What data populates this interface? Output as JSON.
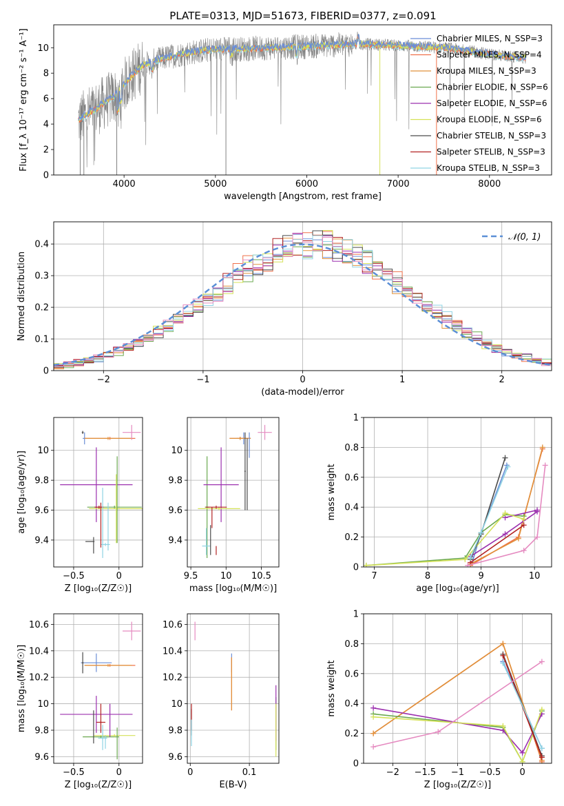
{
  "title": "PLATE=0313, MJD=51673, FIBERID=0377, z=0.091",
  "colors": {
    "Chabrier MILES": "#6b8ed6",
    "Salpeter MILES": "#f0704a",
    "Kroupa MILES": "#e0913a",
    "Chabrier ELODIE": "#6aa84f",
    "Salpeter ELODIE": "#9b2fae",
    "Kroupa ELODIE": "#d4e157",
    "Chabrier STELIB": "#4a4a4a",
    "Salpeter STELIB": "#b22222",
    "Kroupa STELIB": "#8fd3e3",
    "extra": "#e58ac0",
    "grey_spectrum": "#808080"
  },
  "chart_data": [
    {
      "id": "spectrum",
      "type": "line",
      "xlabel": "wavelength [Angstrom, rest frame]",
      "ylabel": "Flux [f_λ 10⁻¹⁷ erg cm⁻² s⁻¹ A⁻¹]",
      "xlim": [
        3230,
        8680
      ],
      "ylim": [
        0,
        11.8
      ],
      "xticks": [
        4000,
        5000,
        6000,
        7000,
        8000
      ],
      "yticks": [
        0,
        2,
        4,
        6,
        8,
        10
      ],
      "legend_position": "right",
      "legend": [
        {
          "label": "Chabrier MILES, N_SSP=3",
          "color": "#6b8ed6"
        },
        {
          "label": "Salpeter MILES, N_SSP=4",
          "color": "#f0704a"
        },
        {
          "label": "Kroupa MILES, N_SSP=3",
          "color": "#e0913a"
        },
        {
          "label": "Chabrier ELODIE, N_SSP=6",
          "color": "#6aa84f"
        },
        {
          "label": "Salpeter ELODIE, N_SSP=6",
          "color": "#9b2fae"
        },
        {
          "label": "Kroupa ELODIE, N_SSP=6",
          "color": "#d4e157"
        },
        {
          "label": "Chabrier STELIB, N_SSP=3",
          "color": "#4a4a4a"
        },
        {
          "label": "Salpeter STELIB, N_SSP=3",
          "color": "#b22222"
        },
        {
          "label": "Kroupa STELIB, N_SSP=3",
          "color": "#8fd3e3"
        }
      ],
      "continuum": {
        "x": [
          3500,
          3600,
          3700,
          3800,
          3900,
          4000,
          4100,
          4200,
          4300,
          4500,
          4700,
          5000,
          5300,
          5600,
          6000,
          6300,
          6600,
          6900,
          7200,
          7500,
          7800,
          8100,
          8400
        ],
        "y": [
          4.3,
          4.8,
          5.2,
          5.8,
          6.2,
          7.1,
          7.9,
          8.6,
          8.9,
          9.3,
          9.6,
          9.9,
          9.9,
          10.0,
          10.1,
          10.2,
          10.3,
          10.2,
          10.1,
          10.0,
          9.7,
          9.4,
          9.2
        ]
      }
    },
    {
      "id": "residuals",
      "type": "histogram",
      "xlabel": "(data-model)/error",
      "ylabel": "Normed distribution",
      "xlim": [
        -2.5,
        2.5
      ],
      "ylim": [
        0,
        0.47
      ],
      "xticks": [
        -2,
        -1,
        0,
        1,
        2
      ],
      "yticks": [
        0.0,
        0.1,
        0.2,
        0.3,
        0.4
      ],
      "legend": [
        {
          "label": "𝒩(0, 1)",
          "color": "#5b8fd6"
        }
      ],
      "bin_width": 0.1,
      "bins_start": -2.5
    },
    {
      "id": "age-vs-Z",
      "type": "errorbar",
      "xlabel": "Z [log₁₀(Z/Z☉)]",
      "ylabel": "age  [log₁₀(age/yr)]",
      "xlim": [
        -0.72,
        0.26
      ],
      "ylim": [
        9.22,
        10.22
      ],
      "xticks": [
        -0.5,
        0.0
      ],
      "yticks": [
        9.4,
        9.6,
        9.8,
        10.0
      ],
      "points": [
        {
          "c": "Chabrier MILES",
          "x": -0.38,
          "xe": 0.02,
          "y": 10.08,
          "ye": 0.04
        },
        {
          "c": "Salpeter MILES",
          "x": -0.1,
          "xe": 0.28,
          "y": 10.08,
          "ye": 0.01
        },
        {
          "c": "Kroupa MILES",
          "x": -0.12,
          "xe": 0.26,
          "y": 10.08,
          "ye": 0.01
        },
        {
          "c": "Chabrier ELODIE",
          "x": -0.05,
          "xe": 0.3,
          "y": 9.62,
          "ye": 0.01
        },
        {
          "c": "Salpeter ELODIE",
          "x": -0.25,
          "xe": 0.4,
          "y": 9.77,
          "ye": 0.25
        },
        {
          "c": "Kroupa ELODIE",
          "x": -0.03,
          "xe": 0.3,
          "y": 9.61,
          "ye": 0.23
        },
        {
          "c": "Chabrier STELIB",
          "x": -0.4,
          "xe": 0.01,
          "y": 10.12,
          "ye": 0.01
        },
        {
          "c": "Salpeter STELIB",
          "x": -0.22,
          "xe": 0.05,
          "y": 9.62,
          "ye": 0.01
        },
        {
          "c": "Kroupa STELIB",
          "x": -0.15,
          "xe": 0.05,
          "y": 9.37,
          "ye": 0.01
        },
        {
          "c": "extra",
          "x": 0.14,
          "xe": 0.1,
          "y": 10.12,
          "ye": 0.05
        }
      ],
      "extra_vlines": [
        {
          "c": "Chabrier STELIB",
          "x": -0.28,
          "y0": 9.31,
          "y1": 9.42
        },
        {
          "c": "Salpeter STELIB",
          "x": -0.2,
          "y0": 9.35,
          "y1": 9.65
        },
        {
          "c": "Kroupa STELIB",
          "x": -0.18,
          "y0": 9.28,
          "y1": 9.75
        },
        {
          "c": "Kroupa STELIB",
          "x": -0.12,
          "y0": 9.33,
          "y1": 9.65
        },
        {
          "c": "Chabrier ELODIE",
          "x": -0.02,
          "y0": 9.38,
          "y1": 9.96
        },
        {
          "c": "Chabrier STELIB",
          "x": -0.32,
          "y0": 9.39,
          "y1": 9.39
        }
      ]
    },
    {
      "id": "age-vs-mass",
      "type": "errorbar",
      "xlabel": "mass [log₁₀(M/M☉)]",
      "ylabel": "",
      "xlim": [
        9.45,
        10.75
      ],
      "ylim": [
        9.22,
        10.22
      ],
      "xticks": [
        9.5,
        10.0,
        10.5
      ],
      "yticks": [
        9.4,
        9.6,
        9.8,
        10.0
      ],
      "points": [
        {
          "c": "Chabrier MILES",
          "x": 10.25,
          "xe": 0.1,
          "y": 10.08,
          "ye": 0.04
        },
        {
          "c": "Salpeter MILES",
          "x": 10.2,
          "xe": 0.15,
          "y": 10.08,
          "ye": 0.01
        },
        {
          "c": "Kroupa MILES",
          "x": 10.2,
          "xe": 0.15,
          "y": 10.08,
          "ye": 0.01
        },
        {
          "c": "Chabrier ELODIE",
          "x": 9.73,
          "xe": 0.03,
          "y": 9.62,
          "ye": 0.34
        },
        {
          "c": "Salpeter ELODIE",
          "x": 9.93,
          "xe": 0.25,
          "y": 9.77,
          "ye": 0.25
        },
        {
          "c": "Kroupa ELODIE",
          "x": 9.9,
          "xe": 0.3,
          "y": 9.61,
          "ye": 0.01
        },
        {
          "c": "Chabrier STELIB",
          "x": 10.27,
          "xe": 0.01,
          "y": 9.86,
          "ye": 0.26
        },
        {
          "c": "Salpeter STELIB",
          "x": 9.86,
          "xe": 0.15,
          "y": 9.62,
          "ye": 0.01
        },
        {
          "c": "Kroupa STELIB",
          "x": 9.72,
          "xe": 0.06,
          "y": 9.36,
          "ye": 0.01
        },
        {
          "c": "extra",
          "x": 10.55,
          "xe": 0.1,
          "y": 10.12,
          "ye": 0.05
        }
      ],
      "extra_vlines": [
        {
          "c": "Salpeter STELIB",
          "x": 9.8,
          "y0": 9.48,
          "y1": 9.62
        },
        {
          "c": "Chabrier STELIB",
          "x": 9.78,
          "y0": 9.3,
          "y1": 9.5
        },
        {
          "c": "Kroupa STELIB",
          "x": 9.72,
          "y0": 9.3,
          "y1": 9.48
        },
        {
          "c": "Salpeter STELIB",
          "x": 9.86,
          "y0": 9.3,
          "y1": 9.36
        },
        {
          "c": "Chabrier MILES",
          "x": 10.33,
          "y0": 9.95,
          "y1": 10.12
        },
        {
          "c": "Chabrier STELIB",
          "x": 10.3,
          "y0": 9.6,
          "y1": 10.08
        }
      ]
    },
    {
      "id": "weight-vs-age",
      "type": "line",
      "xlabel": "age  [log₁₀(age/yr)]",
      "ylabel": "mass weight",
      "xlim": [
        6.8,
        10.32
      ],
      "ylim": [
        0,
        1
      ],
      "xticks": [
        7,
        8,
        9,
        10
      ],
      "yticks": [
        0.0,
        0.2,
        0.4,
        0.6,
        0.8,
        1.0
      ],
      "series": [
        {
          "c": "Chabrier MILES",
          "x": [
            8.85,
            9.0,
            9.48
          ],
          "y": [
            0.05,
            0.23,
            0.68
          ]
        },
        {
          "c": "Salpeter MILES",
          "x": [
            8.8,
            9.7,
            10.15
          ],
          "y": [
            0.01,
            0.2,
            0.79
          ]
        },
        {
          "c": "Kroupa MILES",
          "x": [
            8.8,
            9.7,
            10.15
          ],
          "y": [
            0.02,
            0.19,
            0.8
          ]
        },
        {
          "c": "Chabrier ELODIE",
          "x": [
            6.85,
            8.7,
            9.0,
            9.45,
            9.8
          ],
          "y": [
            0.01,
            0.06,
            0.23,
            0.35,
            0.34
          ]
        },
        {
          "c": "Salpeter ELODIE",
          "x": [
            8.8,
            9.45,
            10.05
          ],
          "y": [
            0.07,
            0.22,
            0.37
          ]
        },
        {
          "c": "Salpeter ELODIE",
          "x": [
            9.45,
            10.05
          ],
          "y": [
            0.33,
            0.38
          ]
        },
        {
          "c": "Kroupa ELODIE",
          "x": [
            6.85,
            8.7,
            9.45,
            9.8
          ],
          "y": [
            0.01,
            0.05,
            0.36,
            0.32
          ]
        },
        {
          "c": "Chabrier STELIB",
          "x": [
            8.8,
            9.0,
            9.45
          ],
          "y": [
            0.05,
            0.22,
            0.73
          ]
        },
        {
          "c": "Salpeter STELIB",
          "x": [
            8.8,
            9.8
          ],
          "y": [
            0.03,
            0.28
          ]
        },
        {
          "c": "Kroupa STELIB",
          "x": [
            8.8,
            9.0,
            9.5
          ],
          "y": [
            0.06,
            0.23,
            0.67
          ]
        },
        {
          "c": "extra",
          "x": [
            8.75,
            9.8,
            10.05,
            10.2
          ],
          "y": [
            0.01,
            0.11,
            0.2,
            0.68
          ]
        }
      ]
    },
    {
      "id": "mass-vs-Z",
      "type": "errorbar",
      "xlabel": "Z [log₁₀(Z/Z☉)]",
      "ylabel": "mass [log₁₀(M/M☉)]",
      "xlim": [
        -0.72,
        0.26
      ],
      "ylim": [
        9.55,
        10.68
      ],
      "xticks": [
        -0.5,
        0.0
      ],
      "yticks": [
        9.6,
        9.8,
        10.0,
        10.2,
        10.4,
        10.6
      ],
      "points": [
        {
          "c": "Chabrier MILES",
          "x": -0.25,
          "xe": 0.17,
          "y": 10.31,
          "ye": 0.07
        },
        {
          "c": "Salpeter MILES",
          "x": -0.1,
          "xe": 0.28,
          "y": 10.29,
          "ye": 0.01
        },
        {
          "c": "Kroupa MILES",
          "x": -0.12,
          "xe": 0.26,
          "y": 10.29,
          "ye": 0.01
        },
        {
          "c": "Chabrier ELODIE",
          "x": -0.2,
          "xe": 0.2,
          "y": 9.75,
          "ye": 0.01
        },
        {
          "c": "Salpeter ELODIE",
          "x": -0.25,
          "xe": 0.4,
          "y": 9.92,
          "ye": 0.14
        },
        {
          "c": "Kroupa ELODIE",
          "x": -0.05,
          "xe": 0.23,
          "y": 9.76,
          "ye": 0.01
        },
        {
          "c": "Chabrier STELIB",
          "x": -0.4,
          "xe": 0.01,
          "y": 10.31,
          "ye": 0.08
        },
        {
          "c": "Salpeter STELIB",
          "x": -0.2,
          "xe": 0.05,
          "y": 9.86,
          "ye": 0.01
        },
        {
          "c": "Kroupa STELIB",
          "x": -0.18,
          "xe": 0.05,
          "y": 9.74,
          "ye": 0.01
        },
        {
          "c": "extra",
          "x": 0.14,
          "xe": 0.1,
          "y": 10.55,
          "ye": 0.07
        }
      ],
      "extra_vlines": [
        {
          "c": "Salpeter STELIB",
          "x": -0.2,
          "y0": 9.78,
          "y1": 10.0
        },
        {
          "c": "Chabrier STELIB",
          "x": -0.28,
          "y0": 9.7,
          "y1": 9.95
        },
        {
          "c": "Kroupa STELIB",
          "x": -0.18,
          "y0": 9.65,
          "y1": 9.84
        },
        {
          "c": "Salpeter ELODIE",
          "x": -0.1,
          "y0": 9.75,
          "y1": 10.0
        },
        {
          "c": "Chabrier ELODIE",
          "x": -0.02,
          "y0": 9.58,
          "y1": 9.82
        },
        {
          "c": "Kroupa STELIB",
          "x": -0.15,
          "y0": 9.66,
          "y1": 9.76
        }
      ]
    },
    {
      "id": "mass-vs-EBV",
      "type": "errorbar",
      "xlabel": "E(B-V)",
      "ylabel": "",
      "xlim": [
        -0.005,
        0.15
      ],
      "ylim": [
        9.55,
        10.68
      ],
      "xticks": [
        0.0,
        0.1
      ],
      "yticks": [
        9.6,
        9.8,
        10.0,
        10.2,
        10.4,
        10.6
      ],
      "points": [
        {
          "c": "Chabrier MILES",
          "x": 0.07,
          "xe": 0,
          "y": 10.31,
          "ye": 0.07
        },
        {
          "c": "Salpeter MILES",
          "x": 0.07,
          "xe": 0,
          "y": 10.15,
          "ye": 0.2
        },
        {
          "c": "Kroupa MILES",
          "x": 0.07,
          "xe": 0,
          "y": 10.15,
          "ye": 0.2
        },
        {
          "c": "Chabrier ELODIE",
          "x": 0.145,
          "xe": 0,
          "y": 9.85,
          "ye": 0.2
        },
        {
          "c": "Salpeter ELODIE",
          "x": 0.145,
          "xe": 0,
          "y": 9.93,
          "ye": 0.21
        },
        {
          "c": "Kroupa ELODIE",
          "x": 0.145,
          "xe": 0,
          "y": 9.8,
          "ye": 0.2
        },
        {
          "c": "Chabrier STELIB",
          "x": 0.002,
          "xe": 0,
          "y": 9.86,
          "ye": 0.1
        },
        {
          "c": "Salpeter STELIB",
          "x": 0.002,
          "xe": 0,
          "y": 9.9,
          "ye": 0.1
        },
        {
          "c": "Kroupa STELIB",
          "x": 0.002,
          "xe": 0,
          "y": 9.78,
          "ye": 0.1
        },
        {
          "c": "extra",
          "x": 0.008,
          "xe": 0,
          "y": 10.55,
          "ye": 0.07
        }
      ],
      "extra_vlines": []
    },
    {
      "id": "weight-vs-Z",
      "type": "line",
      "xlabel": "Z [log₁₀(Z/Z☉)]",
      "ylabel": "mass weight",
      "xlim": [
        -2.45,
        0.45
      ],
      "ylim": [
        0,
        1
      ],
      "xticks": [
        -2.0,
        -1.5,
        -1.0,
        -0.5,
        0.0
      ],
      "yticks": [
        0.0,
        0.2,
        0.4,
        0.6,
        0.8,
        1.0
      ],
      "series": [
        {
          "c": "Chabrier MILES",
          "x": [
            -0.3,
            0.3,
            -0.3
          ],
          "y": [
            0.68,
            0.1,
            0.68
          ]
        },
        {
          "c": "Salpeter MILES",
          "x": [
            -2.3,
            -0.3,
            0.3
          ],
          "y": [
            0.2,
            0.8,
            0.01
          ]
        },
        {
          "c": "Kroupa MILES",
          "x": [
            -2.3,
            -0.3,
            0.3
          ],
          "y": [
            0.2,
            0.8,
            0.02
          ]
        },
        {
          "c": "Chabrier ELODIE",
          "x": [
            -2.3,
            -0.3,
            0.0,
            0.3
          ],
          "y": [
            0.33,
            0.24,
            0.01,
            0.35
          ]
        },
        {
          "c": "Salpeter ELODIE",
          "x": [
            -2.3,
            -0.3,
            0.0,
            0.3
          ],
          "y": [
            0.37,
            0.22,
            0.07,
            0.33
          ]
        },
        {
          "c": "Kroupa ELODIE",
          "x": [
            -2.3,
            -0.3,
            0.0,
            0.3
          ],
          "y": [
            0.31,
            0.25,
            0.01,
            0.36
          ]
        },
        {
          "c": "Chabrier STELIB",
          "x": [
            -0.3,
            0.3
          ],
          "y": [
            0.73,
            0.05
          ]
        },
        {
          "c": "Salpeter STELIB",
          "x": [
            -0.3,
            0.3
          ],
          "y": [
            0.72,
            0.04
          ]
        },
        {
          "c": "Kroupa STELIB",
          "x": [
            -0.3,
            0.3
          ],
          "y": [
            0.67,
            0.1
          ]
        },
        {
          "c": "extra",
          "x": [
            -2.3,
            -1.3,
            0.3
          ],
          "y": [
            0.11,
            0.21,
            0.68
          ]
        }
      ]
    }
  ]
}
